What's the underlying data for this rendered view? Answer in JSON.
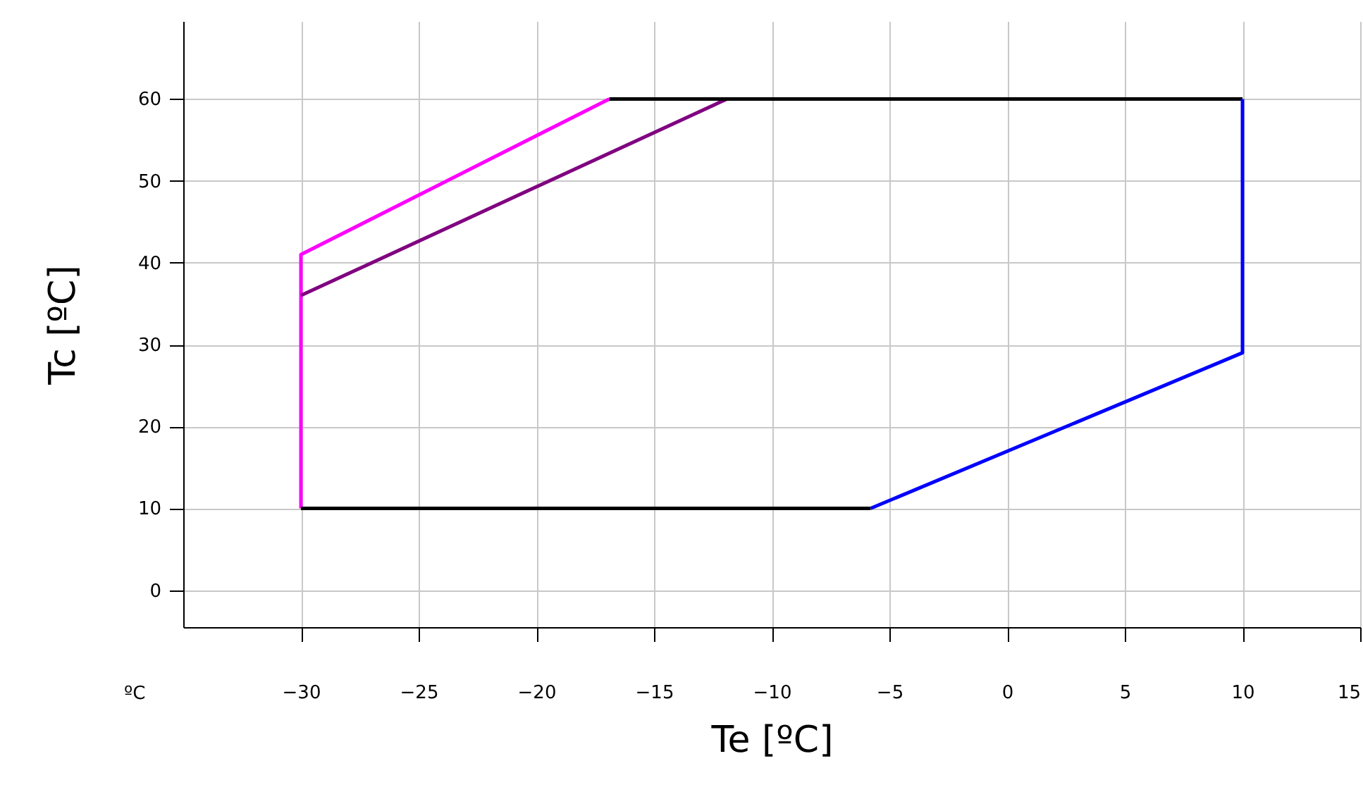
{
  "chart_data": {
    "type": "line",
    "xlabel": "Te [ºC]",
    "ylabel": "Tc [ºC]",
    "annotations": [
      "ºC"
    ],
    "xlim": [
      -35,
      15
    ],
    "ylim": [
      -4.5,
      69.5
    ],
    "xticks": [
      -30,
      -25,
      -20,
      -15,
      -10,
      -5,
      0,
      5,
      10,
      15
    ],
    "yticks": [
      0,
      10,
      20,
      30,
      40,
      50,
      60
    ],
    "grid": true,
    "series": [
      {
        "color": "#ff00ff",
        "x": [
          -30,
          -30,
          -16.9
        ],
        "values": [
          10,
          41,
          60
        ]
      },
      {
        "color": "#800080",
        "x": [
          -30,
          -11.9
        ],
        "values": [
          36,
          60
        ]
      },
      {
        "color": "#000000",
        "x": [
          -16.9,
          10
        ],
        "values": [
          60,
          60
        ]
      },
      {
        "color": "#0000ff",
        "x": [
          10,
          10,
          -5.8
        ],
        "values": [
          60,
          29,
          10
        ]
      },
      {
        "color": "#000000",
        "x": [
          -5.8,
          -30
        ],
        "values": [
          10,
          10
        ]
      }
    ]
  }
}
